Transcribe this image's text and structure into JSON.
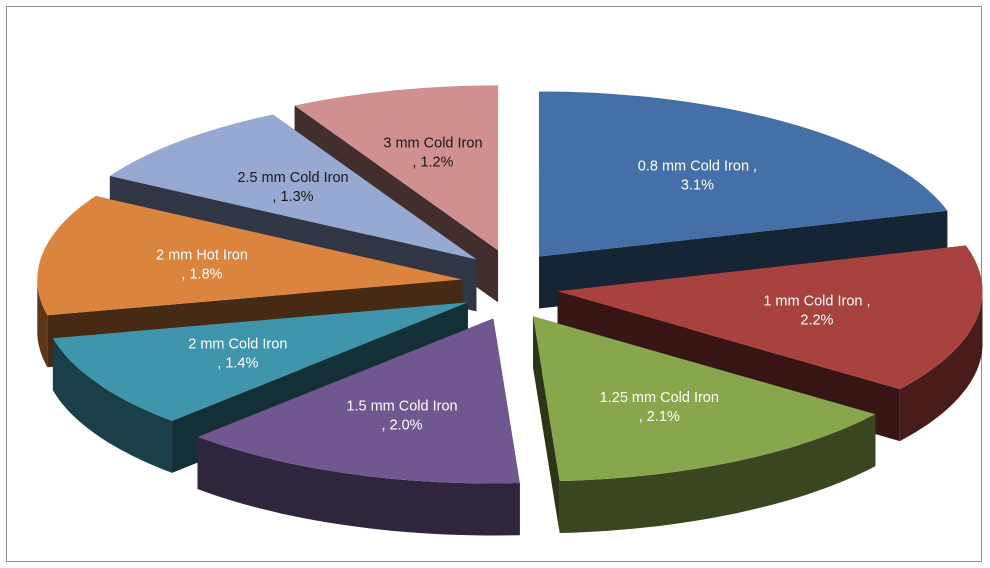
{
  "chart_data": {
    "type": "pie",
    "title": "",
    "style": "exploded 3D pie",
    "slices": [
      {
        "label_line1": "0.8 mm Cold Iron  ,",
        "label_line2": "3.1%",
        "value": 3.1,
        "color": "#4570A7",
        "label_color": "#ffffff"
      },
      {
        "label_line1": "1 mm Cold Iron ,",
        "label_line2": "2.2%",
        "value": 2.2,
        "color": "#A8423E",
        "label_color": "#ffffff"
      },
      {
        "label_line1": "1.25 mm Cold Iron",
        "label_line2": ", 2.1%",
        "value": 2.1,
        "color": "#88A64C",
        "label_color": "#ffffff"
      },
      {
        "label_line1": "1.5 mm Cold Iron",
        "label_line2": ", 2.0%",
        "value": 2.0,
        "color": "#70578F",
        "label_color": "#ffffff"
      },
      {
        "label_line1": "2 mm Cold Iron",
        "label_line2": ", 1.4%",
        "value": 1.4,
        "color": "#3F95AB",
        "label_color": "#ffffff"
      },
      {
        "label_line1": "2 mm Hot Iron",
        "label_line2": ", 1.8%",
        "value": 1.8,
        "color": "#DB843D",
        "label_color": "#ffffff"
      },
      {
        "label_line1": "2.5 mm Cold Iron",
        "label_line2": ", 1.3%",
        "value": 1.3,
        "color": "#95A9D3",
        "label_color": "#1a1a1a"
      },
      {
        "label_line1": "3 mm Cold Iron",
        "label_line2": ", 1.2%",
        "value": 1.2,
        "color": "#D19090",
        "label_color": "#1a1a1a"
      }
    ]
  }
}
